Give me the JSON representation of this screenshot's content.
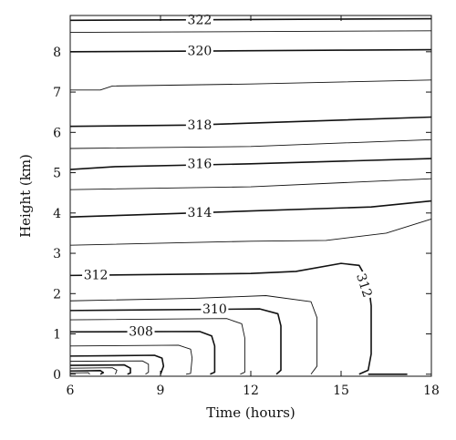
{
  "chart_data": {
    "type": "line",
    "subtype": "contour",
    "title": "",
    "xlabel": "Time (hours)",
    "ylabel": "Height (km)",
    "xlim": [
      6,
      18
    ],
    "ylim": [
      -0.05,
      8.9
    ],
    "xticks": [
      6,
      9,
      12,
      15,
      18
    ],
    "yticks": [
      0,
      1,
      2,
      3,
      4,
      5,
      6,
      7,
      8
    ],
    "grid": false,
    "contours": [
      {
        "level": 322,
        "labeled": true,
        "points": [
          [
            6,
            8.78
          ],
          [
            12,
            8.8
          ],
          [
            18,
            8.82
          ]
        ]
      },
      {
        "level": 321,
        "labeled": false,
        "points": [
          [
            6,
            8.48
          ],
          [
            12,
            8.5
          ],
          [
            18,
            8.52
          ]
        ]
      },
      {
        "level": 320,
        "labeled": true,
        "points": [
          [
            6,
            8.0
          ],
          [
            11,
            8.02
          ],
          [
            15,
            8.04
          ],
          [
            18,
            8.05
          ]
        ]
      },
      {
        "level": 319,
        "labeled": false,
        "points": [
          [
            6,
            7.05
          ],
          [
            7.0,
            7.05
          ],
          [
            7.4,
            7.15
          ],
          [
            12,
            7.2
          ],
          [
            18,
            7.3
          ]
        ]
      },
      {
        "level": 318,
        "labeled": true,
        "points": [
          [
            6,
            6.15
          ],
          [
            10,
            6.18
          ],
          [
            14,
            6.28
          ],
          [
            18,
            6.38
          ]
        ]
      },
      {
        "level": 317,
        "labeled": false,
        "points": [
          [
            6,
            5.6
          ],
          [
            12,
            5.65
          ],
          [
            18,
            5.82
          ]
        ]
      },
      {
        "level": 316,
        "labeled": true,
        "points": [
          [
            6,
            5.08
          ],
          [
            7.5,
            5.15
          ],
          [
            12,
            5.22
          ],
          [
            18,
            5.35
          ]
        ]
      },
      {
        "level": 315,
        "labeled": false,
        "points": [
          [
            6,
            4.58
          ],
          [
            12,
            4.65
          ],
          [
            18,
            4.85
          ]
        ]
      },
      {
        "level": 314,
        "labeled": true,
        "points": [
          [
            6,
            3.9
          ],
          [
            8,
            3.95
          ],
          [
            12,
            4.05
          ],
          [
            16,
            4.15
          ],
          [
            18,
            4.3
          ]
        ]
      },
      {
        "level": 313,
        "labeled": false,
        "points": [
          [
            6,
            3.2
          ],
          [
            12,
            3.3
          ],
          [
            14.5,
            3.32
          ],
          [
            16.5,
            3.5
          ],
          [
            18,
            3.85
          ]
        ]
      },
      {
        "level": 312,
        "labeled": true,
        "points": [
          [
            6,
            2.45
          ],
          [
            12,
            2.5
          ],
          [
            13.5,
            2.55
          ],
          [
            15,
            2.75
          ],
          [
            15.6,
            2.7
          ],
          [
            15.9,
            2.3
          ],
          [
            16.0,
            1.7
          ],
          [
            16.0,
            0.5
          ],
          [
            15.9,
            0.1
          ],
          [
            15.6,
            0.0
          ]
        ]
      },
      {
        "level": 311,
        "labeled": false,
        "points": [
          [
            6,
            1.82
          ],
          [
            10,
            1.88
          ],
          [
            12.5,
            1.95
          ],
          [
            14.0,
            1.8
          ],
          [
            14.2,
            1.4
          ],
          [
            14.2,
            0.2
          ],
          [
            14.0,
            0.0
          ]
        ]
      },
      {
        "level": 310,
        "labeled": true,
        "points": [
          [
            6,
            1.58
          ],
          [
            12.3,
            1.62
          ],
          [
            12.9,
            1.5
          ],
          [
            13.0,
            1.2
          ],
          [
            13.0,
            0.1
          ],
          [
            12.85,
            0.0
          ]
        ]
      },
      {
        "level": 309,
        "labeled": false,
        "points": [
          [
            6,
            1.35
          ],
          [
            11.2,
            1.38
          ],
          [
            11.7,
            1.25
          ],
          [
            11.8,
            0.9
          ],
          [
            11.8,
            0.05
          ],
          [
            11.65,
            0.0
          ]
        ]
      },
      {
        "level": 308,
        "labeled": true,
        "points": [
          [
            6,
            1.05
          ],
          [
            10.3,
            1.06
          ],
          [
            10.7,
            0.95
          ],
          [
            10.8,
            0.7
          ],
          [
            10.8,
            0.05
          ],
          [
            10.65,
            0.0
          ]
        ]
      },
      {
        "level": 307,
        "labeled": false,
        "points": [
          [
            6,
            0.7
          ],
          [
            9.6,
            0.72
          ],
          [
            10.0,
            0.62
          ],
          [
            10.05,
            0.4
          ],
          [
            10.0,
            0.02
          ],
          [
            9.85,
            0.0
          ]
        ]
      },
      {
        "level": 306,
        "labeled": false,
        "points": [
          [
            6,
            0.45
          ],
          [
            8.8,
            0.47
          ],
          [
            9.05,
            0.4
          ],
          [
            9.1,
            0.2
          ],
          [
            9.0,
            0.0
          ]
        ]
      },
      {
        "level": 305,
        "labeled": false,
        "points": [
          [
            6,
            0.32
          ],
          [
            8.4,
            0.33
          ],
          [
            8.6,
            0.25
          ],
          [
            8.6,
            0.05
          ],
          [
            8.5,
            0.0
          ]
        ]
      },
      {
        "level": 304,
        "labeled": false,
        "points": [
          [
            6,
            0.22
          ],
          [
            7.8,
            0.23
          ],
          [
            8.0,
            0.15
          ],
          [
            8.0,
            0.03
          ],
          [
            7.9,
            0.0
          ]
        ]
      },
      {
        "level": 303,
        "labeled": false,
        "points": [
          [
            6,
            0.15
          ],
          [
            7.4,
            0.16
          ],
          [
            7.55,
            0.1
          ],
          [
            7.5,
            0.0
          ]
        ]
      },
      {
        "level": 302,
        "labeled": false,
        "points": [
          [
            6,
            0.08
          ],
          [
            7.0,
            0.09
          ],
          [
            7.1,
            0.04
          ],
          [
            7.0,
            0.0
          ]
        ]
      },
      {
        "level": 301,
        "labeled": false,
        "points": [
          [
            6,
            0.03
          ],
          [
            6.6,
            0.04
          ],
          [
            6.65,
            0.0
          ]
        ]
      },
      {
        "level": 312,
        "labeled": false,
        "points": [
          [
            15.9,
            0.0
          ],
          [
            17.2,
            0.0
          ]
        ]
      }
    ],
    "labels": [
      {
        "text": "322",
        "x": 10.3,
        "y": 8.78,
        "rotate": 0
      },
      {
        "text": "320",
        "x": 10.3,
        "y": 8.01,
        "rotate": 0
      },
      {
        "text": "318",
        "x": 10.3,
        "y": 6.17,
        "rotate": 0
      },
      {
        "text": "316",
        "x": 10.3,
        "y": 5.2,
        "rotate": 0
      },
      {
        "text": "314",
        "x": 10.3,
        "y": 4.0,
        "rotate": 0
      },
      {
        "text": "312",
        "x": 6.85,
        "y": 2.45,
        "rotate": 0
      },
      {
        "text": "312",
        "x": 15.75,
        "y": 2.2,
        "rotate": 72
      },
      {
        "text": "310",
        "x": 10.8,
        "y": 1.6,
        "rotate": 0
      },
      {
        "text": "308",
        "x": 8.35,
        "y": 1.05,
        "rotate": 0
      }
    ]
  }
}
